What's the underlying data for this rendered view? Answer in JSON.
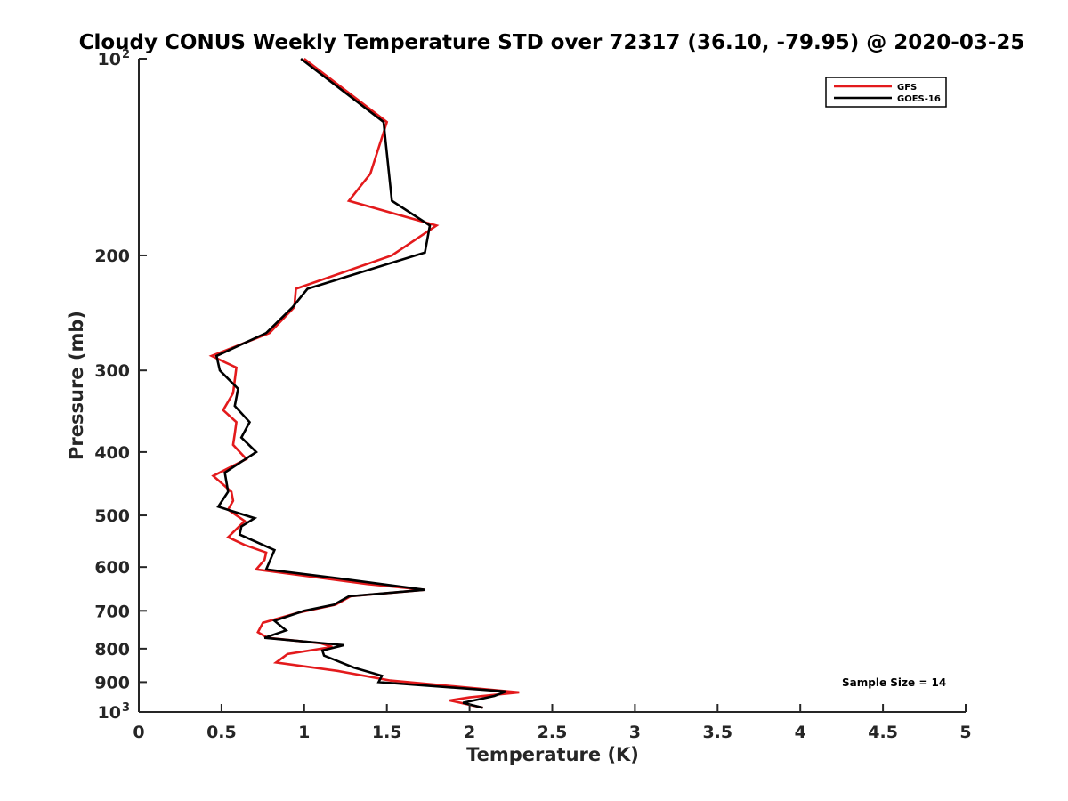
{
  "chart_data": {
    "type": "line",
    "title": "Cloudy CONUS Weekly Temperature STD over 72317 (36.10, -79.95) @ 2020-03-25",
    "xlabel": "Temperature (K)",
    "ylabel": "Pressure (mb)",
    "xlim": [
      0,
      5
    ],
    "ylim": [
      100,
      1000
    ],
    "y_scale": "log",
    "y_reversed": true,
    "grid": false,
    "legend_position": "top-right",
    "x_ticks": [
      "0",
      "0.5",
      "1",
      "1.5",
      "2",
      "2.5",
      "3",
      "3.5",
      "4",
      "4.5",
      "5"
    ],
    "y_ticks": [
      {
        "value": 100,
        "base": "10",
        "exp": "2"
      },
      {
        "value": 200,
        "label": "200"
      },
      {
        "value": 300,
        "label": "300"
      },
      {
        "value": 400,
        "label": "400"
      },
      {
        "value": 500,
        "label": "500"
      },
      {
        "value": 600,
        "label": "600"
      },
      {
        "value": 700,
        "label": "700"
      },
      {
        "value": 800,
        "label": "800"
      },
      {
        "value": 900,
        "label": "900"
      },
      {
        "value": 1000,
        "base": "10",
        "exp": "3"
      }
    ],
    "annotation": "Sample Size = 14",
    "series": [
      {
        "name": "GFS",
        "color": "#e31a1c",
        "points": [
          [
            1.0,
            100
          ],
          [
            1.5,
            125
          ],
          [
            1.4,
            150
          ],
          [
            1.27,
            165
          ],
          [
            1.8,
            180
          ],
          [
            1.53,
            200
          ],
          [
            0.95,
            225
          ],
          [
            0.94,
            240
          ],
          [
            0.79,
            263
          ],
          [
            0.44,
            285
          ],
          [
            0.59,
            297
          ],
          [
            0.57,
            325
          ],
          [
            0.51,
            345
          ],
          [
            0.59,
            360
          ],
          [
            0.58,
            375
          ],
          [
            0.57,
            390
          ],
          [
            0.65,
            410
          ],
          [
            0.45,
            435
          ],
          [
            0.56,
            460
          ],
          [
            0.57,
            475
          ],
          [
            0.54,
            490
          ],
          [
            0.64,
            510
          ],
          [
            0.54,
            540
          ],
          [
            0.64,
            555
          ],
          [
            0.77,
            570
          ],
          [
            0.76,
            585
          ],
          [
            0.71,
            605
          ],
          [
            1.38,
            637
          ],
          [
            1.73,
            650
          ],
          [
            1.28,
            665
          ],
          [
            1.19,
            685
          ],
          [
            0.96,
            705
          ],
          [
            0.75,
            730
          ],
          [
            0.72,
            755
          ],
          [
            0.78,
            770
          ],
          [
            1.1,
            785
          ],
          [
            1.17,
            795
          ],
          [
            0.9,
            815
          ],
          [
            0.83,
            840
          ],
          [
            1.2,
            865
          ],
          [
            1.52,
            895
          ],
          [
            2.3,
            933
          ],
          [
            2.0,
            950
          ],
          [
            1.88,
            960
          ],
          [
            2.08,
            985
          ]
        ]
      },
      {
        "name": "GOES-16",
        "color": "#000000",
        "points": [
          [
            0.98,
            100
          ],
          [
            1.48,
            125
          ],
          [
            1.53,
            165
          ],
          [
            1.76,
            180
          ],
          [
            1.73,
            198
          ],
          [
            1.02,
            225
          ],
          [
            0.93,
            240
          ],
          [
            0.77,
            263
          ],
          [
            0.47,
            285
          ],
          [
            0.49,
            300
          ],
          [
            0.6,
            320
          ],
          [
            0.58,
            340
          ],
          [
            0.67,
            360
          ],
          [
            0.62,
            380
          ],
          [
            0.71,
            400
          ],
          [
            0.52,
            430
          ],
          [
            0.54,
            460
          ],
          [
            0.48,
            485
          ],
          [
            0.7,
            505
          ],
          [
            0.62,
            520
          ],
          [
            0.61,
            535
          ],
          [
            0.82,
            565
          ],
          [
            0.77,
            605
          ],
          [
            1.22,
            625
          ],
          [
            1.73,
            650
          ],
          [
            1.27,
            665
          ],
          [
            1.18,
            685
          ],
          [
            1.0,
            700
          ],
          [
            0.82,
            725
          ],
          [
            0.89,
            750
          ],
          [
            0.76,
            770
          ],
          [
            1.24,
            790
          ],
          [
            1.11,
            805
          ],
          [
            1.12,
            820
          ],
          [
            1.3,
            855
          ],
          [
            1.47,
            880
          ],
          [
            1.45,
            900
          ],
          [
            2.22,
            930
          ],
          [
            2.15,
            945
          ],
          [
            1.96,
            968
          ],
          [
            2.08,
            985
          ]
        ]
      }
    ]
  }
}
